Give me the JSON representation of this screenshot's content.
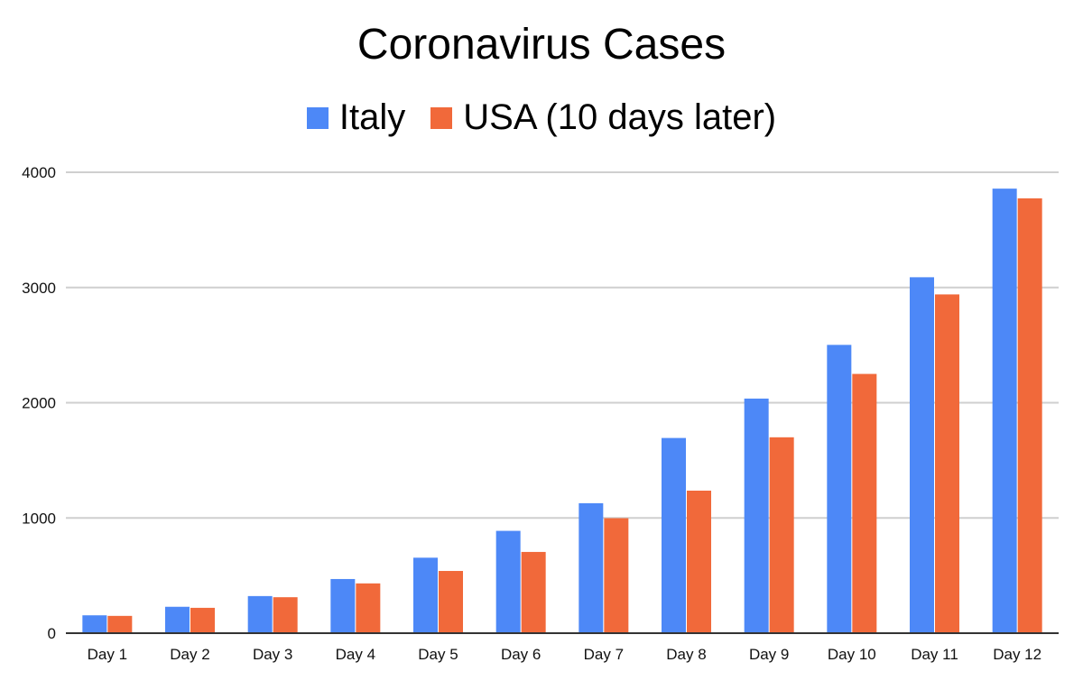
{
  "chart_data": {
    "type": "bar",
    "title": "Coronavirus Cases",
    "categories": [
      "Day 1",
      "Day 2",
      "Day 3",
      "Day 4",
      "Day 5",
      "Day 6",
      "Day 7",
      "Day 8",
      "Day 9",
      "Day 10",
      "Day 11",
      "Day 12"
    ],
    "series": [
      {
        "name": "Italy",
        "color": "#4d88f7",
        "values": [
          155,
          229,
          322,
          470,
          655,
          888,
          1128,
          1694,
          2036,
          2502,
          3089,
          3858
        ]
      },
      {
        "name": "USA (10 days later)",
        "color": "#f1693a",
        "values": [
          150,
          220,
          312,
          432,
          540,
          705,
          998,
          1237,
          1700,
          2250,
          2940,
          3774
        ]
      }
    ],
    "xlabel": "",
    "ylabel": "",
    "ylim": [
      0,
      4000
    ],
    "yticks": [
      0,
      1000,
      2000,
      3000,
      4000
    ],
    "grid": true,
    "legend_position": "top"
  }
}
